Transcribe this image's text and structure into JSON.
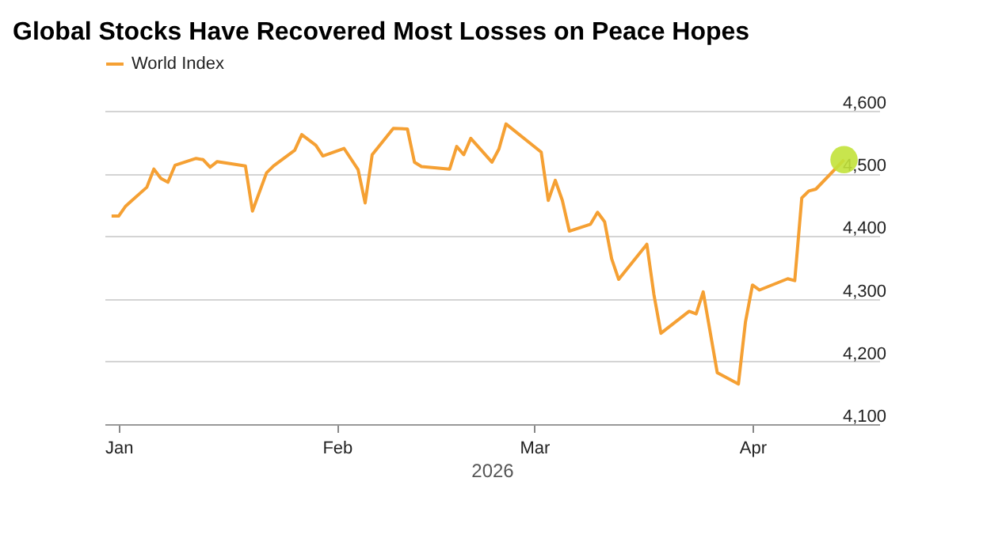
{
  "chart_data": {
    "type": "line",
    "title": "Global Stocks Have Recovered Most Losses on Peace Hopes",
    "xlabel": "2026",
    "x": [
      "2025-12-31",
      "2026-01-01",
      "2026-01-02",
      "2026-01-05",
      "2026-01-06",
      "2026-01-07",
      "2026-01-08",
      "2026-01-09",
      "2026-01-12",
      "2026-01-13",
      "2026-01-14",
      "2026-01-15",
      "2026-01-19",
      "2026-01-20",
      "2026-01-22",
      "2026-01-23",
      "2026-01-26",
      "2026-01-27",
      "2026-01-29",
      "2026-01-30",
      "2026-02-02",
      "2026-02-04",
      "2026-02-05",
      "2026-02-06",
      "2026-02-09",
      "2026-02-11",
      "2026-02-12",
      "2026-02-13",
      "2026-02-17",
      "2026-02-18",
      "2026-02-19",
      "2026-02-20",
      "2026-02-23",
      "2026-02-24",
      "2026-02-25",
      "2026-03-02",
      "2026-03-03",
      "2026-03-04",
      "2026-03-05",
      "2026-03-06",
      "2026-03-09",
      "2026-03-10",
      "2026-03-11",
      "2026-03-12",
      "2026-03-13",
      "2026-03-17",
      "2026-03-18",
      "2026-03-19",
      "2026-03-23",
      "2026-03-24",
      "2026-03-25",
      "2026-03-27",
      "2026-03-30",
      "2026-03-31",
      "2026-04-01",
      "2026-04-02",
      "2026-04-06",
      "2026-04-07",
      "2026-04-08",
      "2026-04-09",
      "2026-04-10",
      "2026-04-14"
    ],
    "series": [
      {
        "name": "World Index",
        "color": "#f5a033",
        "marker": "none",
        "values": [
          4432,
          4432,
          4448,
          4478,
          4507,
          4492,
          4486,
          4513,
          4524,
          4522,
          4510,
          4519,
          4512,
          4440,
          4501,
          4512,
          4537,
          4562,
          4545,
          4528,
          4540,
          4506,
          4453,
          4530,
          4572,
          4571,
          4518,
          4511,
          4507,
          4543,
          4530,
          4556,
          4518,
          4539,
          4579,
          4534,
          4457,
          4489,
          4457,
          4408,
          4419,
          4438,
          4423,
          4364,
          4331,
          4387,
          4307,
          4245,
          4280,
          4276,
          4311,
          4182,
          4164,
          4263,
          4322,
          4314,
          4332,
          4329,
          4461,
          4472,
          4475,
          4522
        ]
      },
      {
        "type": "scatter",
        "color": "#c2e23a",
        "marker": "circle",
        "x": [
          "2026-04-14"
        ],
        "values": [
          4522
        ]
      }
    ],
    "xlim": [
      "2025-12-30",
      "2026-04-19"
    ],
    "xticks": [
      {
        "value": "2026-01-01",
        "label": "Jan"
      },
      {
        "value": "2026-02-01",
        "label": "Feb"
      },
      {
        "value": "2026-03-01",
        "label": "Mar"
      },
      {
        "value": "2026-04-01",
        "label": "Apr"
      }
    ],
    "ylim": [
      4100,
      4600
    ],
    "yticks": [
      {
        "value": 4100,
        "label": "4,100"
      },
      {
        "value": 4200,
        "label": "4,200"
      },
      {
        "value": 4300,
        "label": "4,300"
      },
      {
        "value": 4400,
        "label": "4,400"
      },
      {
        "value": 4500,
        "label": "4,500"
      },
      {
        "value": 4600,
        "label": "4,600"
      }
    ],
    "grid": "y",
    "legend": "top left",
    "line_style": "solid"
  }
}
